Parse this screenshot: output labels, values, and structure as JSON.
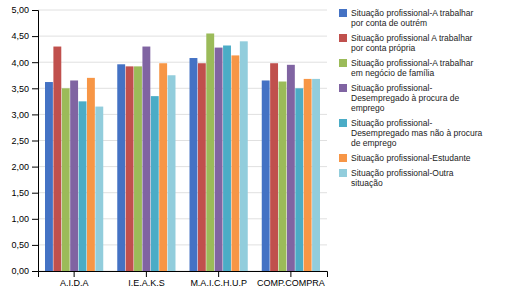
{
  "chart_data": {
    "type": "bar",
    "categories": [
      "A.I.D.A",
      "I.E.A.K.S",
      "M.A.I.C.H.U.P",
      "COMP.COMPRA"
    ],
    "series": [
      {
        "name": "Situação profissional-A trabalhar\npor conta de outrém",
        "color": "#4472C4",
        "values": [
          3.62,
          3.96,
          4.08,
          3.65
        ]
      },
      {
        "name": "Situação profissional A trabalhar\npor conta própria",
        "color": "#C0504D",
        "values": [
          4.3,
          3.92,
          3.98,
          3.98
        ]
      },
      {
        "name": "Situação profissional-A trabalhar\nem negócio de família",
        "color": "#9BBB59",
        "values": [
          3.5,
          3.92,
          4.55,
          3.63
        ]
      },
      {
        "name": "Situação profissional-\nDesempregado à procura de\nemprego",
        "color": "#8064A2",
        "values": [
          3.65,
          4.3,
          4.28,
          3.95
        ]
      },
      {
        "name": "Situação profissional-\nDesempregado mas não à procura\nde emprego",
        "color": "#4BACC6",
        "values": [
          3.25,
          3.35,
          4.32,
          3.5
        ]
      },
      {
        "name": "Situação profissional-Estudante",
        "color": "#F79646",
        "values": [
          3.7,
          3.98,
          4.13,
          3.68
        ]
      },
      {
        "name": "Situação profissional-Outra\nsituação",
        "color": "#92CDDC",
        "values": [
          3.15,
          3.75,
          4.4,
          3.68
        ]
      }
    ],
    "ylim": [
      0,
      5.0
    ],
    "yticks": [
      {
        "value": 0.0,
        "label": "0,00"
      },
      {
        "value": 0.5,
        "label": "0,50"
      },
      {
        "value": 1.0,
        "label": "1,00"
      },
      {
        "value": 1.5,
        "label": "1,50"
      },
      {
        "value": 2.0,
        "label": "2,00"
      },
      {
        "value": 2.5,
        "label": "2,50"
      },
      {
        "value": 3.0,
        "label": "3,00"
      },
      {
        "value": 3.5,
        "label": "3,50"
      },
      {
        "value": 4.0,
        "label": "4,00"
      },
      {
        "value": 4.5,
        "label": "4,50"
      },
      {
        "value": 5.0,
        "label": "5,00"
      }
    ],
    "grid": true,
    "legend": "right"
  }
}
